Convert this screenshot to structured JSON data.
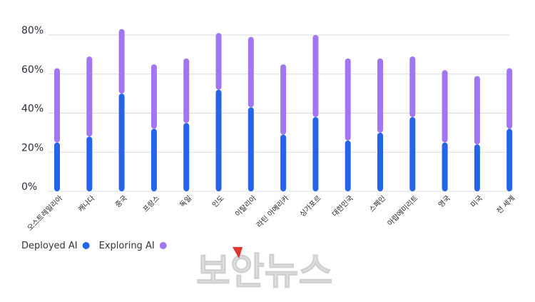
{
  "chart_data": {
    "type": "bar",
    "stacked": true,
    "categories": [
      "오스트레일리아",
      "캐나다",
      "중국",
      "프랑스",
      "독일",
      "인도",
      "이탈리아",
      "라틴 아메리카",
      "싱가포르",
      "대한민국",
      "스페인",
      "아랍에미리트",
      "영국",
      "미국",
      "전 세계"
    ],
    "series": [
      {
        "name": "Deployed AI",
        "color": "#2563eb",
        "values": [
          25,
          28,
          50,
          32,
          35,
          52,
          43,
          29,
          38,
          26,
          30,
          38,
          25,
          24,
          32
        ]
      },
      {
        "name": "Exploring AI",
        "color": "#a276f0",
        "values": [
          38,
          41,
          33,
          33,
          33,
          29,
          36,
          36,
          42,
          42,
          38,
          31,
          37,
          35,
          31
        ]
      }
    ],
    "yticks": [
      "0%",
      "20%",
      "40%",
      "60%",
      "80%"
    ],
    "ylim": [
      0,
      80
    ],
    "grid": true,
    "legend_position": "bottom-left"
  },
  "watermark": {
    "text": "보안뉴스"
  }
}
